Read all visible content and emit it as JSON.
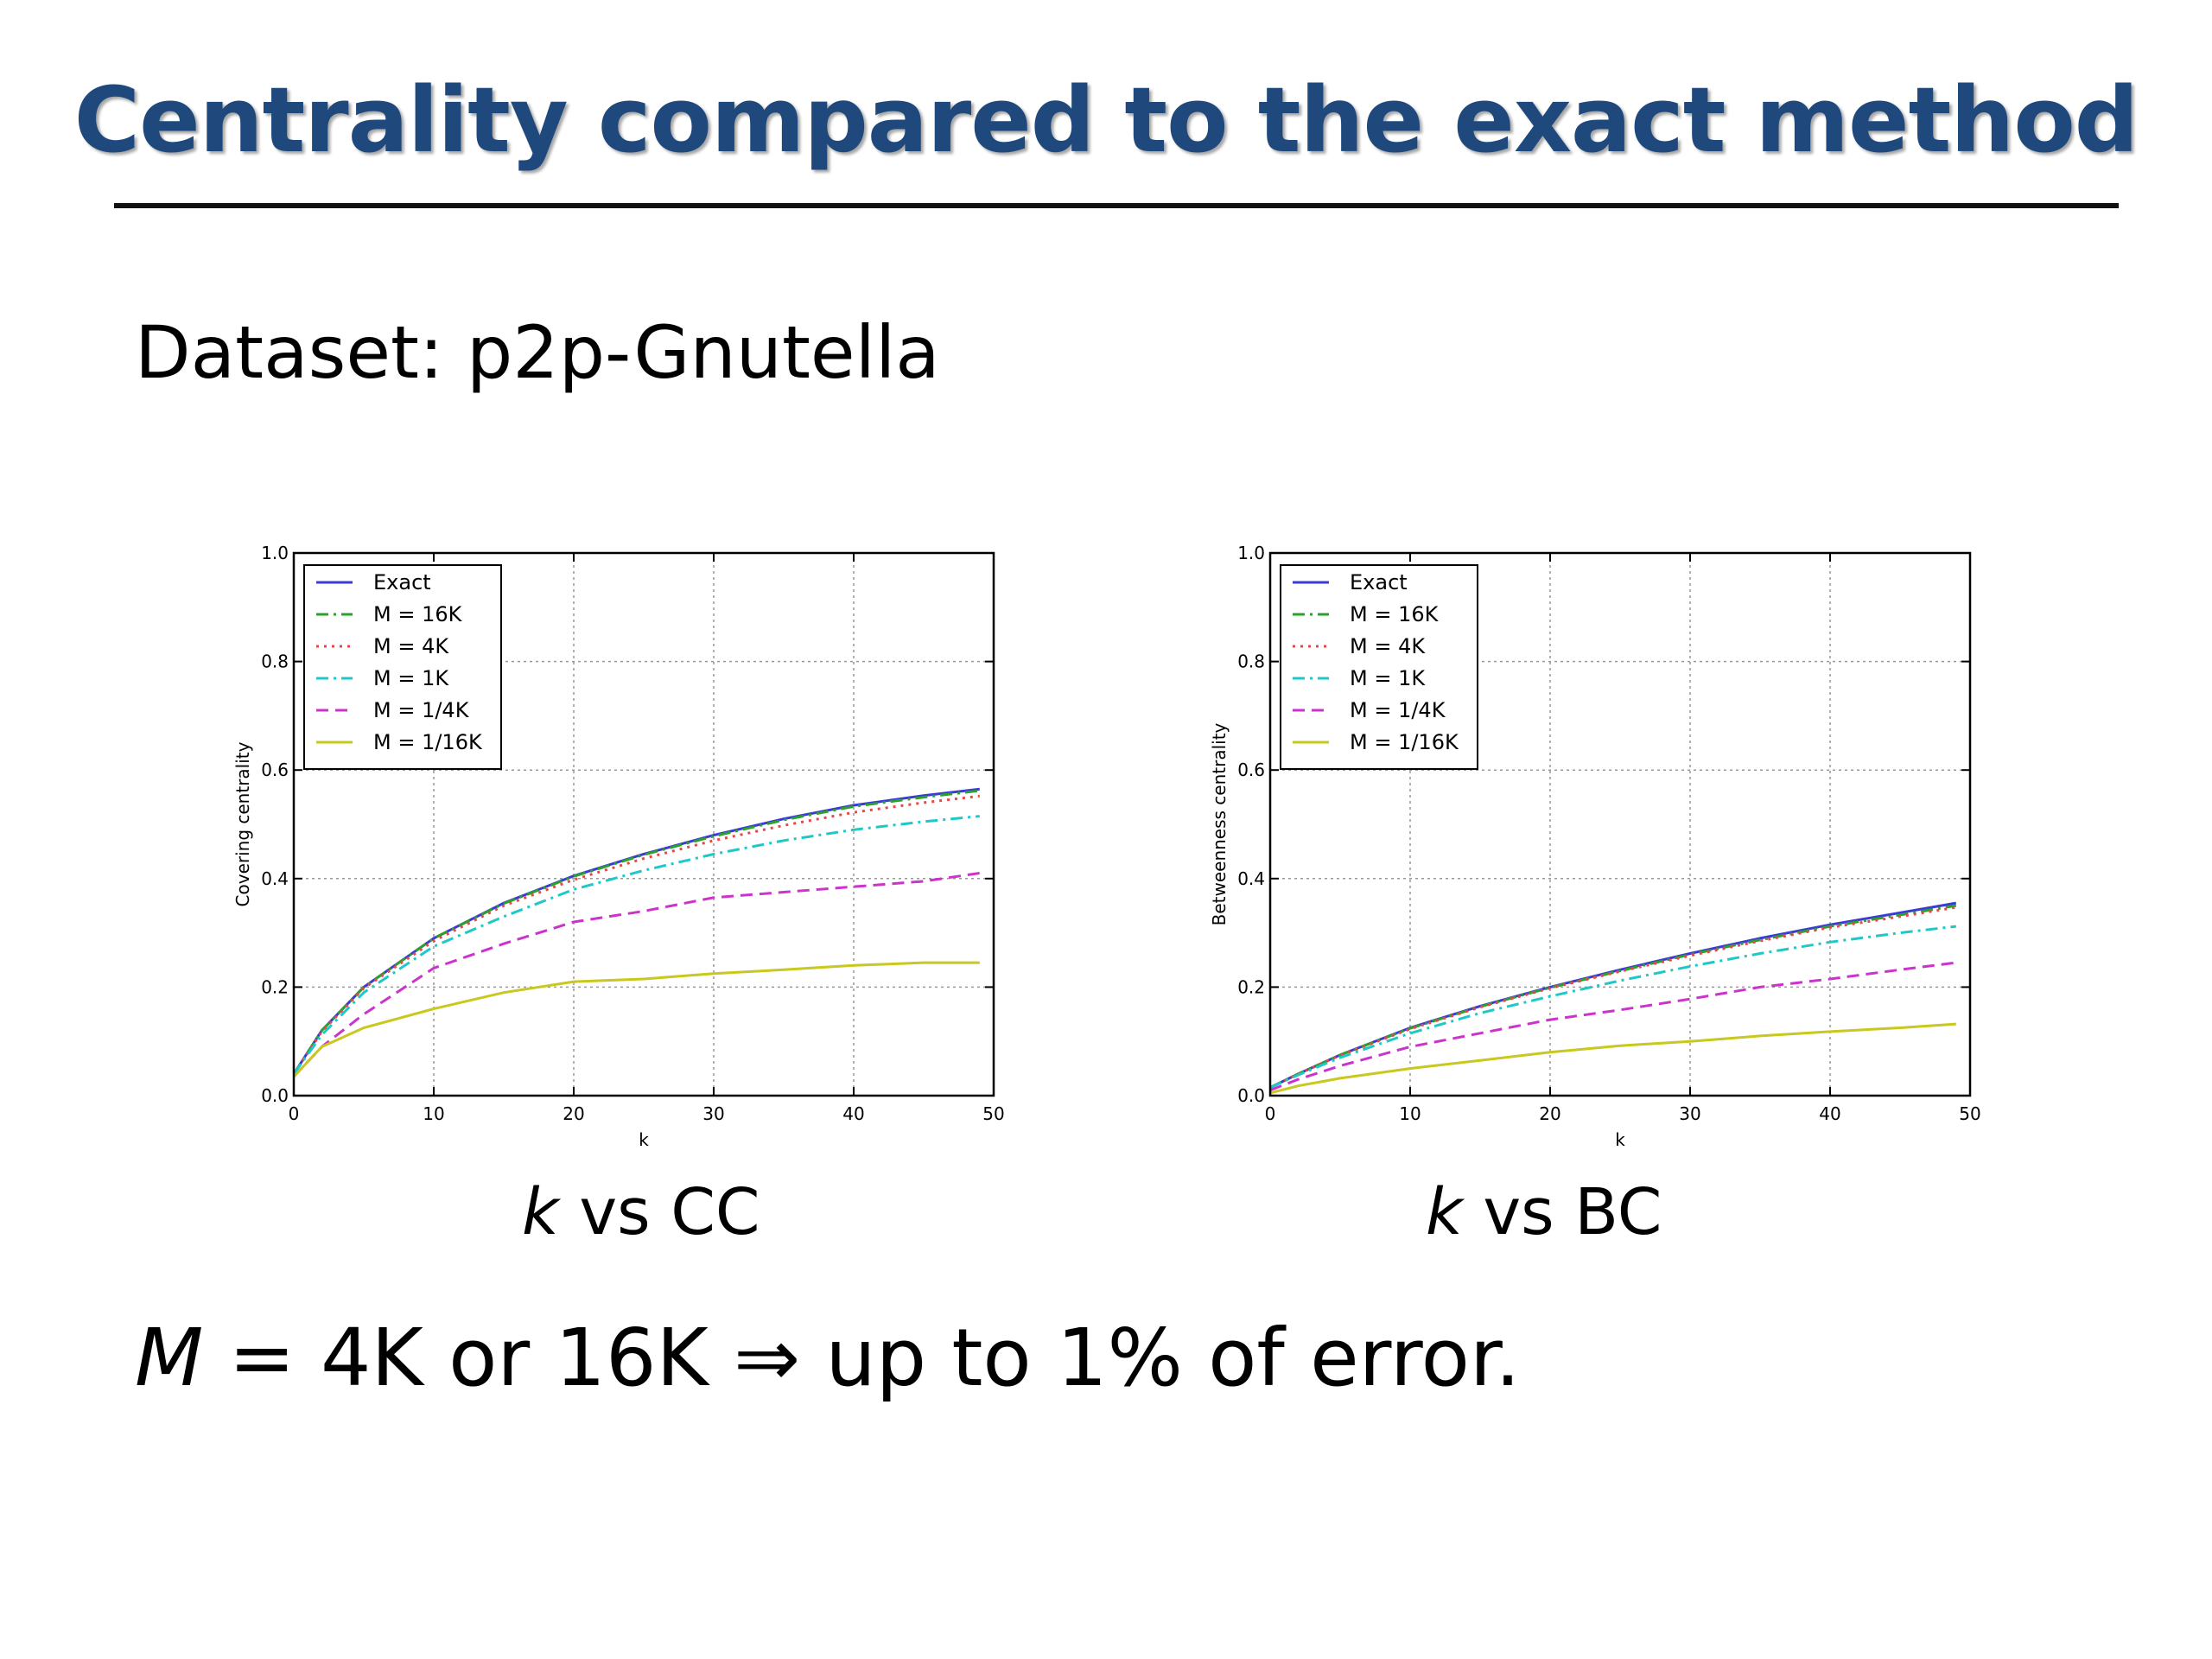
{
  "slide": {
    "title": "Centrality compared to the exact method",
    "dataset_label": "Dataset: p2p-Gnutella",
    "caption_left_var": "k",
    "caption_left_rest": " vs CC",
    "caption_right_var": "k",
    "caption_right_rest": " vs BC",
    "bottom_var": "M",
    "bottom_rest": " = 4K or 16K ⇒ up to 1% of error."
  },
  "chart_data": [
    {
      "type": "line",
      "title": "",
      "xlabel": "k",
      "ylabel": "Covering centrality",
      "xlim": [
        0,
        50
      ],
      "ylim": [
        0.0,
        1.0
      ],
      "xticks": [
        0,
        10,
        20,
        30,
        40,
        50
      ],
      "yticks": [
        0.0,
        0.2,
        0.4,
        0.6,
        0.8,
        1.0
      ],
      "grid": true,
      "legend_position": "top-left",
      "x": [
        0,
        2,
        5,
        10,
        15,
        20,
        25,
        30,
        35,
        40,
        45,
        49
      ],
      "series": [
        {
          "name": "Exact",
          "color": "#3b3bd6",
          "dash": "solid",
          "values": [
            0.04,
            0.12,
            0.2,
            0.29,
            0.355,
            0.405,
            0.445,
            0.48,
            0.51,
            0.535,
            0.553,
            0.565
          ]
        },
        {
          "name": "M = 16K",
          "color": "#2ca02c",
          "dash": "dashdot",
          "values": [
            0.04,
            0.12,
            0.2,
            0.29,
            0.354,
            0.404,
            0.444,
            0.478,
            0.508,
            0.533,
            0.55,
            0.562
          ]
        },
        {
          "name": "M = 4K",
          "color": "#e8474a",
          "dash": "dot",
          "values": [
            0.04,
            0.118,
            0.198,
            0.285,
            0.35,
            0.398,
            0.437,
            0.47,
            0.498,
            0.522,
            0.54,
            0.552
          ]
        },
        {
          "name": "M = 1K",
          "color": "#1fc8c8",
          "dash": "dashdot",
          "values": [
            0.04,
            0.112,
            0.19,
            0.275,
            0.33,
            0.38,
            0.415,
            0.445,
            0.47,
            0.49,
            0.505,
            0.515
          ]
        },
        {
          "name": "M = 1/4K",
          "color": "#cc33cc",
          "dash": "dash",
          "values": [
            0.035,
            0.09,
            0.15,
            0.235,
            0.28,
            0.32,
            0.34,
            0.365,
            0.375,
            0.385,
            0.395,
            0.41
          ]
        },
        {
          "name": "M = 1/16K",
          "color": "#c8c81e",
          "dash": "solid",
          "values": [
            0.035,
            0.09,
            0.125,
            0.16,
            0.19,
            0.21,
            0.215,
            0.225,
            0.232,
            0.24,
            0.245,
            0.245
          ]
        }
      ]
    },
    {
      "type": "line",
      "title": "",
      "xlabel": "k",
      "ylabel": "Betweenness centrality",
      "xlim": [
        0,
        50
      ],
      "ylim": [
        0.0,
        1.0
      ],
      "xticks": [
        0,
        10,
        20,
        30,
        40,
        50
      ],
      "yticks": [
        0.0,
        0.2,
        0.4,
        0.6,
        0.8,
        1.0
      ],
      "grid": true,
      "legend_position": "top-left",
      "x": [
        0,
        2,
        5,
        10,
        15,
        20,
        25,
        30,
        35,
        40,
        45,
        49
      ],
      "series": [
        {
          "name": "Exact",
          "color": "#3b3bd6",
          "dash": "solid",
          "values": [
            0.015,
            0.04,
            0.075,
            0.125,
            0.165,
            0.2,
            0.232,
            0.262,
            0.29,
            0.315,
            0.337,
            0.355
          ]
        },
        {
          "name": "M = 16K",
          "color": "#2ca02c",
          "dash": "dashdot",
          "values": [
            0.015,
            0.04,
            0.075,
            0.124,
            0.164,
            0.199,
            0.23,
            0.26,
            0.287,
            0.312,
            0.333,
            0.35
          ]
        },
        {
          "name": "M = 4K",
          "color": "#e8474a",
          "dash": "dot",
          "values": [
            0.015,
            0.04,
            0.074,
            0.123,
            0.163,
            0.198,
            0.229,
            0.258,
            0.285,
            0.31,
            0.33,
            0.347
          ]
        },
        {
          "name": "M = 1K",
          "color": "#1fc8c8",
          "dash": "dashdot",
          "values": [
            0.015,
            0.038,
            0.07,
            0.115,
            0.152,
            0.183,
            0.212,
            0.238,
            0.262,
            0.283,
            0.3,
            0.312
          ]
        },
        {
          "name": "M = 1/4K",
          "color": "#cc33cc",
          "dash": "dash",
          "values": [
            0.01,
            0.03,
            0.055,
            0.09,
            0.115,
            0.14,
            0.158,
            0.178,
            0.2,
            0.215,
            0.232,
            0.245
          ]
        },
        {
          "name": "M = 1/16K",
          "color": "#c8c81e",
          "dash": "solid",
          "values": [
            0.005,
            0.018,
            0.032,
            0.05,
            0.065,
            0.08,
            0.092,
            0.1,
            0.11,
            0.118,
            0.125,
            0.132
          ]
        }
      ]
    }
  ]
}
